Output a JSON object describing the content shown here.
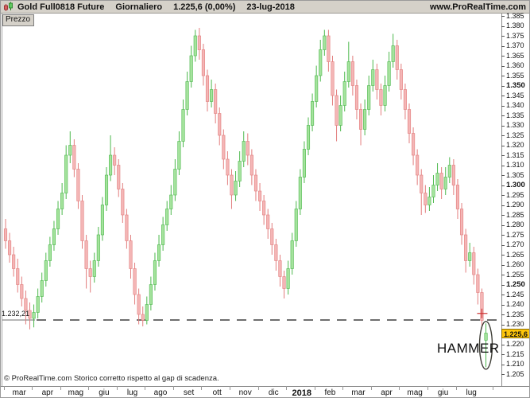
{
  "header": {
    "instrument": "Gold Full0818 Future",
    "timeframe": "Giornaliero",
    "last_quote": "1.225,6 (0,00%)",
    "date": "23-lug-2018",
    "site": "www.ProRealTime.com"
  },
  "tab": {
    "label": "Prezzo"
  },
  "footer_note": "© ProRealTime.com  Storico corretto rispetto al gap di scadenza.",
  "support_line": {
    "label": "1.232,21",
    "price": 1232.21
  },
  "annotations": {
    "hammer_label": "HAMMER",
    "current_price_badge": "1.225,6",
    "current_price": 1225.6,
    "badge_color": "#fdc50a",
    "ellipse_color": "#3f3f37",
    "cross_color": "#cc3333",
    "dash_color": "#6e6e6e"
  },
  "chart_data": {
    "type": "candlestick",
    "title": "Gold Full0818 Future - Giornaliero",
    "ylabel": "Prezzo",
    "y_axis": {
      "min": 1205,
      "max": 1385,
      "step": 5,
      "bold_step": 50,
      "hidden_label": 1225
    },
    "x_axis": {
      "labels": [
        "mar",
        "apr",
        "mag",
        "giu",
        "lug",
        "ago",
        "set",
        "ott",
        "nov",
        "dic",
        "2018",
        "feb",
        "mar",
        "apr",
        "mag",
        "giu",
        "lug"
      ],
      "bold_label": "2018"
    },
    "legend": "none",
    "grid": "off",
    "colors": {
      "up_fill": "#a5e39d",
      "up_stroke": "#4cb84c",
      "down_fill": "#f4b6b6",
      "down_stroke": "#e27d7d"
    },
    "candles": [
      [
        1278,
        1283,
        1268,
        1272
      ],
      [
        1272,
        1276,
        1261,
        1265
      ],
      [
        1265,
        1269,
        1254,
        1258
      ],
      [
        1258,
        1263,
        1246,
        1250
      ],
      [
        1250,
        1254,
        1239,
        1243
      ],
      [
        1243,
        1247,
        1230,
        1237
      ],
      [
        1237,
        1241,
        1227.5,
        1233
      ],
      [
        1233,
        1240,
        1228.5,
        1236
      ],
      [
        1236,
        1248,
        1233,
        1244
      ],
      [
        1244,
        1256,
        1241,
        1252
      ],
      [
        1252,
        1266,
        1249,
        1262
      ],
      [
        1262,
        1274,
        1259,
        1270
      ],
      [
        1270,
        1282,
        1267,
        1278
      ],
      [
        1278,
        1292,
        1275,
        1288
      ],
      [
        1288,
        1301,
        1285,
        1296
      ],
      [
        1296,
        1320,
        1293,
        1315
      ],
      [
        1315,
        1327,
        1311,
        1320
      ],
      [
        1320,
        1323,
        1304,
        1308
      ],
      [
        1308,
        1311,
        1288,
        1292
      ],
      [
        1292,
        1295,
        1268,
        1272
      ],
      [
        1272,
        1275,
        1248,
        1258
      ],
      [
        1258,
        1262,
        1246,
        1254
      ],
      [
        1254,
        1266,
        1251,
        1262
      ],
      [
        1262,
        1279,
        1259,
        1275
      ],
      [
        1275,
        1294,
        1272,
        1290
      ],
      [
        1290,
        1309,
        1287,
        1305
      ],
      [
        1305,
        1325,
        1302,
        1315
      ],
      [
        1315,
        1319,
        1305,
        1310
      ],
      [
        1310,
        1313,
        1294,
        1298
      ],
      [
        1298,
        1301,
        1281,
        1285
      ],
      [
        1285,
        1288,
        1268,
        1272
      ],
      [
        1272,
        1275,
        1253,
        1258
      ],
      [
        1258,
        1261,
        1240,
        1245
      ],
      [
        1245,
        1248,
        1230,
        1235
      ],
      [
        1235,
        1239,
        1229,
        1232
      ],
      [
        1232,
        1244,
        1230,
        1240
      ],
      [
        1240,
        1254,
        1237,
        1250
      ],
      [
        1250,
        1266,
        1247,
        1262
      ],
      [
        1262,
        1275,
        1259,
        1270
      ],
      [
        1270,
        1284,
        1267,
        1280
      ],
      [
        1280,
        1292,
        1277,
        1288
      ],
      [
        1288,
        1300,
        1285,
        1295
      ],
      [
        1295,
        1313,
        1292,
        1308
      ],
      [
        1308,
        1327,
        1305,
        1322
      ],
      [
        1322,
        1343,
        1319,
        1338
      ],
      [
        1338,
        1357,
        1335,
        1352
      ],
      [
        1352,
        1370,
        1349,
        1365
      ],
      [
        1365,
        1378,
        1362,
        1375
      ],
      [
        1375,
        1379,
        1363,
        1368
      ],
      [
        1368,
        1371,
        1350,
        1355
      ],
      [
        1355,
        1358,
        1337,
        1342
      ],
      [
        1342,
        1353,
        1339,
        1348
      ],
      [
        1348,
        1351,
        1331,
        1336
      ],
      [
        1336,
        1339,
        1320,
        1325
      ],
      [
        1325,
        1328,
        1308,
        1313
      ],
      [
        1313,
        1317,
        1300,
        1305
      ],
      [
        1305,
        1308,
        1288,
        1295
      ],
      [
        1295,
        1307,
        1292,
        1302
      ],
      [
        1302,
        1317,
        1299,
        1312
      ],
      [
        1312,
        1327,
        1309,
        1322
      ],
      [
        1322,
        1326,
        1310,
        1315
      ],
      [
        1315,
        1318,
        1300,
        1305
      ],
      [
        1305,
        1308,
        1292,
        1297
      ],
      [
        1297,
        1301,
        1287,
        1292
      ],
      [
        1292,
        1295,
        1280,
        1285
      ],
      [
        1285,
        1288,
        1273,
        1278
      ],
      [
        1278,
        1281,
        1265,
        1270
      ],
      [
        1270,
        1273,
        1257,
        1262
      ],
      [
        1262,
        1265,
        1249,
        1254
      ],
      [
        1254,
        1257,
        1243,
        1248
      ],
      [
        1248,
        1262,
        1245,
        1258
      ],
      [
        1258,
        1276,
        1255,
        1272
      ],
      [
        1272,
        1292,
        1269,
        1288
      ],
      [
        1288,
        1308,
        1285,
        1304
      ],
      [
        1304,
        1322,
        1301,
        1318
      ],
      [
        1318,
        1334,
        1315,
        1330
      ],
      [
        1330,
        1346,
        1327,
        1342
      ],
      [
        1342,
        1360,
        1339,
        1355
      ],
      [
        1355,
        1373,
        1352,
        1368
      ],
      [
        1368,
        1378,
        1365,
        1375
      ],
      [
        1375,
        1378,
        1357,
        1362
      ],
      [
        1362,
        1365,
        1340,
        1345
      ],
      [
        1345,
        1348,
        1322,
        1330
      ],
      [
        1330,
        1345,
        1327,
        1340
      ],
      [
        1340,
        1357,
        1337,
        1352
      ],
      [
        1352,
        1372,
        1349,
        1362
      ],
      [
        1362,
        1365,
        1345,
        1350
      ],
      [
        1350,
        1353,
        1333,
        1338
      ],
      [
        1338,
        1341,
        1320,
        1328
      ],
      [
        1328,
        1343,
        1325,
        1338
      ],
      [
        1338,
        1355,
        1335,
        1350
      ],
      [
        1350,
        1363,
        1347,
        1358
      ],
      [
        1358,
        1361,
        1343,
        1348
      ],
      [
        1348,
        1351,
        1335,
        1340
      ],
      [
        1340,
        1355,
        1337,
        1350
      ],
      [
        1350,
        1367,
        1347,
        1362
      ],
      [
        1362,
        1376,
        1359,
        1370
      ],
      [
        1370,
        1373,
        1353,
        1358
      ],
      [
        1358,
        1361,
        1343,
        1348
      ],
      [
        1348,
        1351,
        1333,
        1338
      ],
      [
        1338,
        1341,
        1321,
        1326
      ],
      [
        1326,
        1329,
        1310,
        1315
      ],
      [
        1315,
        1318,
        1300,
        1305
      ],
      [
        1305,
        1308,
        1285,
        1296
      ],
      [
        1296,
        1300,
        1286,
        1290
      ],
      [
        1290,
        1299,
        1287,
        1294
      ],
      [
        1294,
        1305,
        1291,
        1300
      ],
      [
        1300,
        1311,
        1297,
        1306
      ],
      [
        1306,
        1309,
        1293,
        1298
      ],
      [
        1298,
        1309,
        1295,
        1304
      ],
      [
        1304,
        1314,
        1301,
        1310
      ],
      [
        1310,
        1313,
        1295,
        1300
      ],
      [
        1300,
        1303,
        1283,
        1288
      ],
      [
        1288,
        1291,
        1270,
        1275
      ],
      [
        1275,
        1278,
        1256,
        1262
      ],
      [
        1262,
        1271,
        1259,
        1266
      ],
      [
        1266,
        1269,
        1250,
        1255
      ],
      [
        1255,
        1258,
        1240,
        1246
      ],
      [
        1246,
        1248,
        1228,
        1232
      ],
      [
        1222,
        1230.5,
        1208.5,
        1225.6
      ]
    ]
  }
}
